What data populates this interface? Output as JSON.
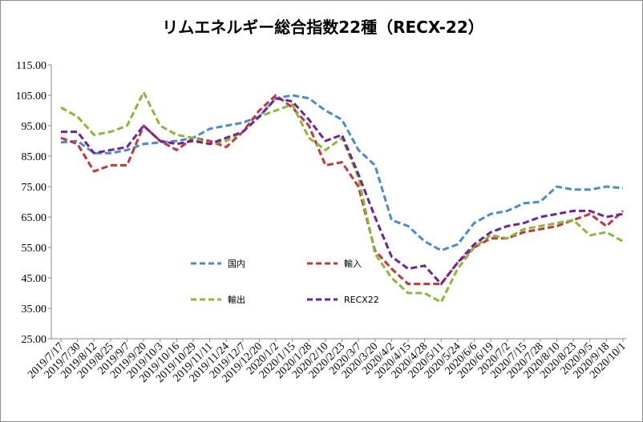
{
  "chart_data": {
    "type": "line",
    "title": "リムエネルギー総合指数22種（RECX-22）",
    "xlabel": "",
    "ylabel": "",
    "ylim": [
      25,
      115
    ],
    "yticks": [
      "25.00",
      "35.00",
      "45.00",
      "55.00",
      "65.00",
      "75.00",
      "85.00",
      "95.00",
      "105.00",
      "115.00"
    ],
    "grid": false,
    "legend_position": "inside-lower-left",
    "categories": [
      "2019/7/17",
      "2019/7/30",
      "2019/8/12",
      "2019/8/25",
      "2019/9/7",
      "2019/9/20",
      "2019/10/3",
      "2019/10/16",
      "2019/10/29",
      "2019/11/11",
      "2019/11/24",
      "2019/12/7",
      "2019/12/20",
      "2020/1/2",
      "2020/1/15",
      "2020/1/28",
      "2020/2/10",
      "2020/2/23",
      "2020/3/7",
      "2020/3/20",
      "2020/4/2",
      "2020/4/15",
      "2020/4/28",
      "2020/5/11",
      "2020/5/24",
      "2020/6/6",
      "2020/6/19",
      "2020/7/2",
      "2020/7/15",
      "2020/7/28",
      "2020/8/10",
      "2020/8/23",
      "2020/9/5",
      "2020/9/18",
      "2020/10/1"
    ],
    "series": [
      {
        "name": "国内",
        "color": "#4a8ad0",
        "values": [
          89.5,
          90,
          86,
          86,
          87,
          89,
          89.5,
          90,
          91,
          94,
          95,
          96,
          98,
          104,
          105,
          104,
          100,
          97,
          87,
          82,
          64,
          62,
          57,
          54,
          56,
          63,
          66,
          67,
          69.5,
          70,
          75,
          74,
          74,
          75,
          74.5
        ]
      },
      {
        "name": "輸入",
        "color": "#cc3333",
        "values": [
          91,
          89,
          80,
          82,
          82,
          95,
          90,
          87,
          91,
          90,
          88,
          93,
          100,
          105,
          101,
          95,
          82,
          83,
          75,
          54,
          48,
          43,
          43,
          43,
          50,
          55,
          58,
          58,
          60,
          61,
          62,
          64,
          66,
          62,
          67
        ]
      },
      {
        "name": "輸出",
        "color": "#88bb33",
        "values": [
          101,
          98,
          92,
          93,
          95,
          106,
          95,
          92,
          91,
          89,
          90,
          93,
          98,
          100,
          102,
          91,
          87,
          91,
          78,
          53,
          45,
          40,
          40,
          37,
          48,
          55,
          59,
          58,
          61,
          62,
          63,
          64,
          59,
          60,
          57
        ]
      },
      {
        "name": "RECX22",
        "color": "#7020a0",
        "values": [
          93,
          93,
          86,
          87,
          88,
          95,
          90,
          89,
          90,
          89,
          91,
          93,
          98,
          104,
          103,
          97,
          90,
          92,
          79,
          65,
          52,
          48,
          49,
          43,
          50,
          56,
          60,
          62,
          63,
          65,
          66,
          67,
          67,
          65,
          66
        ]
      }
    ]
  }
}
